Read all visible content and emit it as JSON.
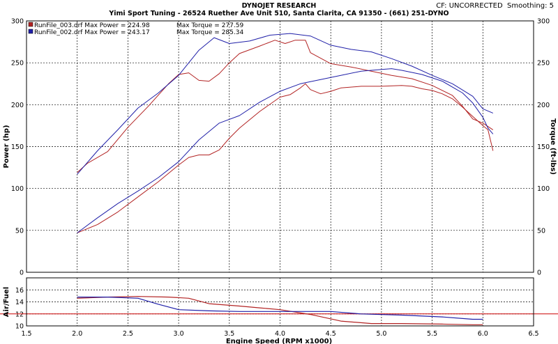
{
  "header": {
    "company": "DYNOJET RESEARCH",
    "shop": "Yimi Sport Tuning - 26524 Ruether Ave Unit 510, Santa Clarita, CA 91350 - (661) 251-DYNO",
    "correction": "CF: UNCORRECTED  Smoothing: 5"
  },
  "colors": {
    "run_003": "#b22222",
    "run_002": "#1f1fa8",
    "afr_target": "#cc0000",
    "grid": "#000000",
    "background": "#ffffff"
  },
  "chart_data": [
    {
      "type": "line",
      "xlabel": "Engine Speed (RPM x1000)",
      "ylabel": "Power (hp)",
      "y2label": "Torque (ft-lbs)",
      "xlim": [
        1.5,
        6.5
      ],
      "ylim": [
        0,
        300
      ],
      "y2lim": [
        0,
        300
      ],
      "x_ticks": [
        "1.5",
        "2.0",
        "2.5",
        "3.0",
        "3.5",
        "4.0",
        "4.5",
        "5.0",
        "5.5",
        "6.0",
        "6.5"
      ],
      "y_ticks": [
        "0",
        "50",
        "100",
        "150",
        "200",
        "250",
        "300"
      ],
      "y2_ticks": [
        "0",
        "50",
        "100",
        "150",
        "200",
        "250",
        "300"
      ],
      "grid": true,
      "legend": [
        {
          "file": "RunFile_003.drf",
          "power_label": "Max Power = 224.98",
          "torque_label": "Max Torque = 277.59",
          "color": "#b22222"
        },
        {
          "file": "RunFile_002.drf",
          "power_label": "Max Power = 243.17",
          "torque_label": "Max Torque = 285.34",
          "color": "#1f1fa8"
        }
      ],
      "series": [
        {
          "name": "RunFile_003.drf",
          "measure": "Power",
          "color": "#b22222",
          "points": [
            [
              2.0,
              47
            ],
            [
              2.2,
              57
            ],
            [
              2.4,
              72
            ],
            [
              2.6,
              90
            ],
            [
              2.8,
              108
            ],
            [
              3.0,
              128
            ],
            [
              3.1,
              137
            ],
            [
              3.2,
              140
            ],
            [
              3.3,
              140
            ],
            [
              3.4,
              146
            ],
            [
              3.5,
              160
            ],
            [
              3.6,
              172
            ],
            [
              3.8,
              192
            ],
            [
              4.0,
              209
            ],
            [
              4.1,
              212
            ],
            [
              4.2,
              220
            ],
            [
              4.25,
              225
            ],
            [
              4.3,
              218
            ],
            [
              4.4,
              213
            ],
            [
              4.5,
              216
            ],
            [
              4.6,
              220
            ],
            [
              4.8,
              222
            ],
            [
              5.0,
              222
            ],
            [
              5.2,
              223
            ],
            [
              5.3,
              222
            ],
            [
              5.4,
              219
            ],
            [
              5.5,
              217
            ],
            [
              5.6,
              213
            ],
            [
              5.7,
              207
            ],
            [
              5.8,
              197
            ],
            [
              5.9,
              186
            ],
            [
              6.0,
              175
            ],
            [
              6.05,
              170
            ],
            [
              6.1,
              145
            ]
          ]
        },
        {
          "name": "RunFile_003.drf",
          "measure": "Torque",
          "color": "#b22222",
          "points": [
            [
              2.0,
              119
            ],
            [
              2.1,
              130
            ],
            [
              2.3,
              144
            ],
            [
              2.5,
              173
            ],
            [
              2.7,
              198
            ],
            [
              2.9,
              225
            ],
            [
              3.0,
              236
            ],
            [
              3.1,
              238
            ],
            [
              3.2,
              229
            ],
            [
              3.3,
              228
            ],
            [
              3.4,
              237
            ],
            [
              3.5,
              250
            ],
            [
              3.6,
              261
            ],
            [
              3.8,
              270
            ],
            [
              3.95,
              277
            ],
            [
              4.05,
              273
            ],
            [
              4.15,
              277
            ],
            [
              4.25,
              277
            ],
            [
              4.3,
              262
            ],
            [
              4.5,
              249
            ],
            [
              4.7,
              245
            ],
            [
              4.9,
              240
            ],
            [
              5.1,
              235
            ],
            [
              5.3,
              231
            ],
            [
              5.5,
              223
            ],
            [
              5.7,
              211
            ],
            [
              5.8,
              198
            ],
            [
              5.9,
              183
            ],
            [
              6.0,
              178
            ],
            [
              6.1,
              170
            ]
          ]
        },
        {
          "name": "RunFile_002.drf",
          "measure": "Power",
          "color": "#1f1fa8",
          "points": [
            [
              2.0,
              47
            ],
            [
              2.2,
              65
            ],
            [
              2.4,
              82
            ],
            [
              2.6,
              97
            ],
            [
              2.8,
              113
            ],
            [
              3.0,
              132
            ],
            [
              3.2,
              158
            ],
            [
              3.4,
              178
            ],
            [
              3.6,
              187
            ],
            [
              3.8,
              203
            ],
            [
              4.0,
              216
            ],
            [
              4.2,
              225
            ],
            [
              4.4,
              230
            ],
            [
              4.6,
              235
            ],
            [
              4.8,
              240
            ],
            [
              5.0,
              242
            ],
            [
              5.1,
              243
            ],
            [
              5.2,
              241
            ],
            [
              5.4,
              236
            ],
            [
              5.6,
              228
            ],
            [
              5.8,
              214
            ],
            [
              5.9,
              202
            ],
            [
              6.0,
              185
            ],
            [
              6.05,
              172
            ],
            [
              6.1,
              165
            ]
          ]
        },
        {
          "name": "RunFile_002.drf",
          "measure": "Torque",
          "color": "#1f1fa8",
          "points": [
            [
              2.0,
              117
            ],
            [
              2.2,
              145
            ],
            [
              2.4,
              170
            ],
            [
              2.6,
              196
            ],
            [
              2.8,
              214
            ],
            [
              3.0,
              235
            ],
            [
              3.1,
              250
            ],
            [
              3.2,
              265
            ],
            [
              3.35,
              280
            ],
            [
              3.5,
              273
            ],
            [
              3.7,
              276
            ],
            [
              3.9,
              283
            ],
            [
              4.1,
              285
            ],
            [
              4.3,
              282
            ],
            [
              4.5,
              271
            ],
            [
              4.7,
              266
            ],
            [
              4.9,
              263
            ],
            [
              5.1,
              255
            ],
            [
              5.3,
              246
            ],
            [
              5.5,
              235
            ],
            [
              5.7,
              225
            ],
            [
              5.9,
              210
            ],
            [
              6.0,
              195
            ],
            [
              6.1,
              190
            ]
          ]
        }
      ]
    },
    {
      "type": "line",
      "xlabel": "Engine Speed (RPM x1000)",
      "ylabel": "Air/Fuel",
      "xlim": [
        1.5,
        6.5
      ],
      "ylim": [
        10,
        18
      ],
      "y_ticks": [
        "10",
        "12",
        "14",
        "16"
      ],
      "grid": true,
      "reference_line": {
        "y": 12,
        "color": "#cc0000"
      },
      "series": [
        {
          "name": "RunFile_003.drf",
          "measure": "Air/Fuel",
          "color": "#b22222",
          "points": [
            [
              2.0,
              14.6
            ],
            [
              2.3,
              14.8
            ],
            [
              2.6,
              14.9
            ],
            [
              2.9,
              14.8
            ],
            [
              3.1,
              14.6
            ],
            [
              3.3,
              13.7
            ],
            [
              3.6,
              13.3
            ],
            [
              3.8,
              13.0
            ],
            [
              4.0,
              12.7
            ],
            [
              4.3,
              11.9
            ],
            [
              4.6,
              10.8
            ],
            [
              4.9,
              10.4
            ],
            [
              5.2,
              10.4
            ],
            [
              5.6,
              10.3
            ],
            [
              5.9,
              10.2
            ],
            [
              6.0,
              10.2
            ]
          ]
        },
        {
          "name": "RunFile_002.drf",
          "measure": "Air/Fuel",
          "color": "#1f1fa8",
          "points": [
            [
              2.0,
              14.8
            ],
            [
              2.3,
              14.8
            ],
            [
              2.6,
              14.6
            ],
            [
              2.8,
              13.6
            ],
            [
              3.0,
              12.7
            ],
            [
              3.3,
              12.5
            ],
            [
              3.6,
              12.4
            ],
            [
              3.9,
              12.4
            ],
            [
              4.2,
              12.4
            ],
            [
              4.5,
              12.4
            ],
            [
              4.8,
              12.0
            ],
            [
              5.2,
              11.8
            ],
            [
              5.6,
              11.5
            ],
            [
              5.9,
              11.1
            ],
            [
              6.0,
              11.1
            ]
          ]
        }
      ]
    }
  ]
}
